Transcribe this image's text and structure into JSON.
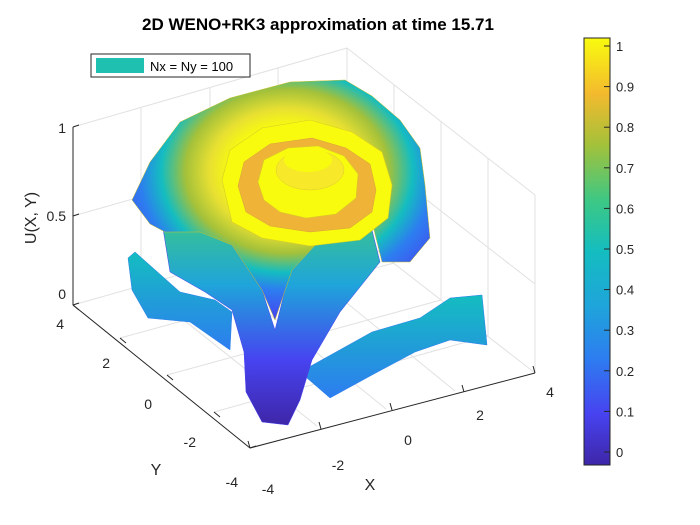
{
  "chart_data": {
    "type": "surface",
    "title": "2D WENO+RK3 approximation at time 15.71",
    "xlabel": "X",
    "ylabel": "Y",
    "zlabel": "U(X, Y)",
    "xlim": [
      -4,
      4
    ],
    "ylim": [
      -4,
      4
    ],
    "zlim": [
      0,
      1
    ],
    "x_ticks": [
      "-4",
      "-2",
      "0",
      "2",
      "4"
    ],
    "y_ticks": [
      "-4",
      "-2",
      "0",
      "2",
      "4"
    ],
    "z_ticks": [
      "0",
      "0.5",
      "1"
    ],
    "grid": true,
    "colormap": "parula",
    "colorbar": {
      "range": [
        0,
        1
      ],
      "ticks": [
        "0",
        "0.1",
        "0.2",
        "0.3",
        "0.4",
        "0.5",
        "0.6",
        "0.7",
        "0.8",
        "0.9",
        "1"
      ]
    },
    "legend": {
      "position": "top-left",
      "entries": [
        {
          "label": "Nx = Ny = 100",
          "color": "#20c0b0"
        }
      ]
    },
    "series": [
      {
        "name": "Nx = Ny = 100"
      }
    ]
  }
}
